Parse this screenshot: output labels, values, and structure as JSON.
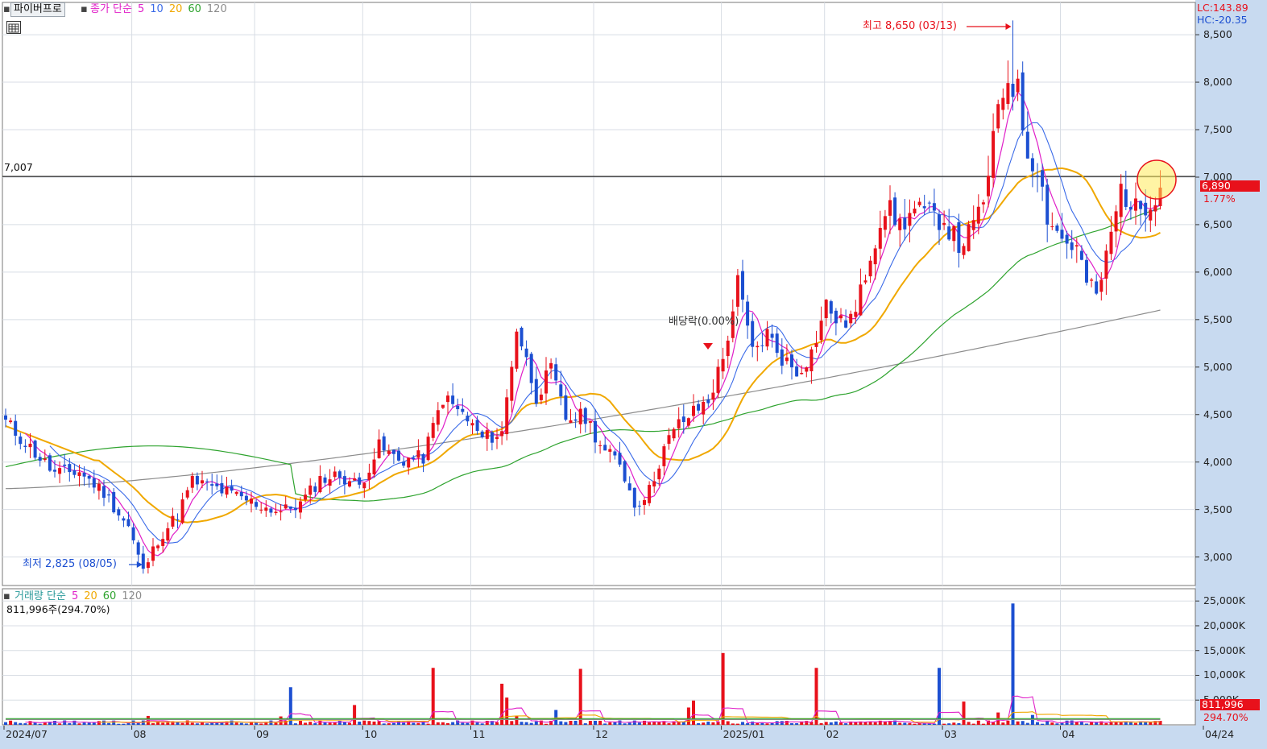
{
  "toolbar": {
    "title_button": "파이버프로",
    "price_legend": {
      "prefix": "종가 단순",
      "ma5": "5",
      "ma10": "10",
      "ma20": "20",
      "ma60": "60",
      "ma120": "120"
    },
    "volume_legend": {
      "prefix": "거래량 단순",
      "ma5": "5",
      "ma20": "20",
      "ma60": "60",
      "ma120": "120"
    },
    "volume_readout": "811,996주(294.70%)"
  },
  "readouts": {
    "lc": "LC:143.89",
    "hc": "HC:-20.35",
    "reference_line_label": "7,007",
    "current_price_tag": "6,890",
    "current_change_tag": "1.77%",
    "current_volume_tag": "811,996",
    "current_volume_pct_tag": "294.70%"
  },
  "annotations": {
    "high": "최고 8,650 (03/13)",
    "low": "최저 2,825 (08/05)",
    "dividend": "배당락(0.00%)"
  },
  "colors": {
    "up": "#e8111b",
    "down": "#1c4fd1",
    "ma5": "#e01fc8",
    "ma10": "#3a6ae8",
    "ma20": "#f0a800",
    "ma60": "#2ea32e",
    "ma120": "#8c8c8c",
    "axis_bg": "#c8daf0",
    "grid": "#d8dde4"
  },
  "chart_data": [
    {
      "type": "candlestick",
      "title": "",
      "y_ticks": [
        "8,500",
        "8,000",
        "7,500",
        "7,000",
        "6,500",
        "6,000",
        "5,500",
        "5,000",
        "4,500",
        "4,000",
        "3,500",
        "3,000"
      ],
      "y_tick_values": [
        8500,
        8000,
        7500,
        7000,
        6500,
        6000,
        5500,
        5000,
        4500,
        4000,
        3500,
        3000
      ],
      "ylim": [
        2700,
        8840
      ],
      "x_ticks": [
        "2024/07",
        "08",
        "09",
        "10",
        "11",
        "12",
        "2025/01",
        "02",
        "03",
        "04",
        "04/24"
      ],
      "reference_line": 7007,
      "high": {
        "value": 8650,
        "date": "03/13"
      },
      "low": {
        "value": 2825,
        "date": "08/05"
      },
      "last_close": 6890,
      "waypoints": [
        [
          0,
          4420
        ],
        [
          5,
          4150
        ],
        [
          10,
          3880
        ],
        [
          15,
          3900
        ],
        [
          20,
          3680
        ],
        [
          25,
          3320
        ],
        [
          28,
          2850
        ],
        [
          31,
          3180
        ],
        [
          35,
          3450
        ],
        [
          38,
          3800
        ],
        [
          43,
          3720
        ],
        [
          48,
          3620
        ],
        [
          53,
          3520
        ],
        [
          56,
          3480
        ],
        [
          60,
          3560
        ],
        [
          64,
          3820
        ],
        [
          68,
          3860
        ],
        [
          72,
          3750
        ],
        [
          76,
          4160
        ],
        [
          80,
          4020
        ],
        [
          85,
          4050
        ],
        [
          89,
          4680
        ],
        [
          93,
          4500
        ],
        [
          97,
          4250
        ],
        [
          101,
          4300
        ],
        [
          104,
          5420
        ],
        [
          108,
          4700
        ],
        [
          111,
          4960
        ],
        [
          114,
          4460
        ],
        [
          118,
          4480
        ],
        [
          122,
          4100
        ],
        [
          125,
          4000
        ],
        [
          128,
          3550
        ],
        [
          131,
          3700
        ],
        [
          134,
          4150
        ],
        [
          137,
          4400
        ],
        [
          140,
          4520
        ],
        [
          143,
          4650
        ],
        [
          146,
          5080
        ],
        [
          149,
          5880
        ],
        [
          152,
          5150
        ],
        [
          155,
          5350
        ],
        [
          158,
          5100
        ],
        [
          161,
          4950
        ],
        [
          164,
          5150
        ],
        [
          167,
          5650
        ],
        [
          170,
          5450
        ],
        [
          173,
          5560
        ],
        [
          176,
          6200
        ],
        [
          179,
          6700
        ],
        [
          182,
          6500
        ],
        [
          185,
          6650
        ],
        [
          188,
          6600
        ],
        [
          191,
          6550
        ],
        [
          194,
          6280
        ],
        [
          197,
          6460
        ],
        [
          200,
          6950
        ],
        [
          202,
          7750
        ],
        [
          204,
          8050
        ],
        [
          206,
          7900
        ],
        [
          208,
          7250
        ],
        [
          210,
          7120
        ],
        [
          212,
          6600
        ],
        [
          215,
          6350
        ],
        [
          218,
          6250
        ],
        [
          220,
          5900
        ],
        [
          222,
          5740
        ],
        [
          224,
          6150
        ],
        [
          227,
          6880
        ],
        [
          230,
          6650
        ],
        [
          233,
          6770
        ],
        [
          235,
          6890
        ]
      ],
      "ma_120_start": 3720,
      "ma_120_end": 5600
    },
    {
      "type": "bar",
      "title": "",
      "y_ticks": [
        "25,000K",
        "20,000K",
        "15,000K",
        "10,000K",
        "5,000K"
      ],
      "y_tick_values": [
        25000,
        20000,
        15000,
        10000,
        5000
      ],
      "ylim": [
        0,
        26500
      ],
      "unit": "K",
      "spikes": [
        [
          29,
          1800
        ],
        [
          37,
          900
        ],
        [
          56,
          1700
        ],
        [
          58,
          7600
        ],
        [
          71,
          4000
        ],
        [
          87,
          11500
        ],
        [
          101,
          8300
        ],
        [
          102,
          5500
        ],
        [
          104,
          1800
        ],
        [
          112,
          3000
        ],
        [
          117,
          11300
        ],
        [
          139,
          3500
        ],
        [
          140,
          4900
        ],
        [
          146,
          14500
        ],
        [
          165,
          11500
        ],
        [
          190,
          11500
        ],
        [
          195,
          4700
        ],
        [
          202,
          2500
        ],
        [
          205,
          24500
        ],
        [
          209,
          2000
        ],
        [
          235,
          812
        ]
      ],
      "last_value": 812
    }
  ]
}
